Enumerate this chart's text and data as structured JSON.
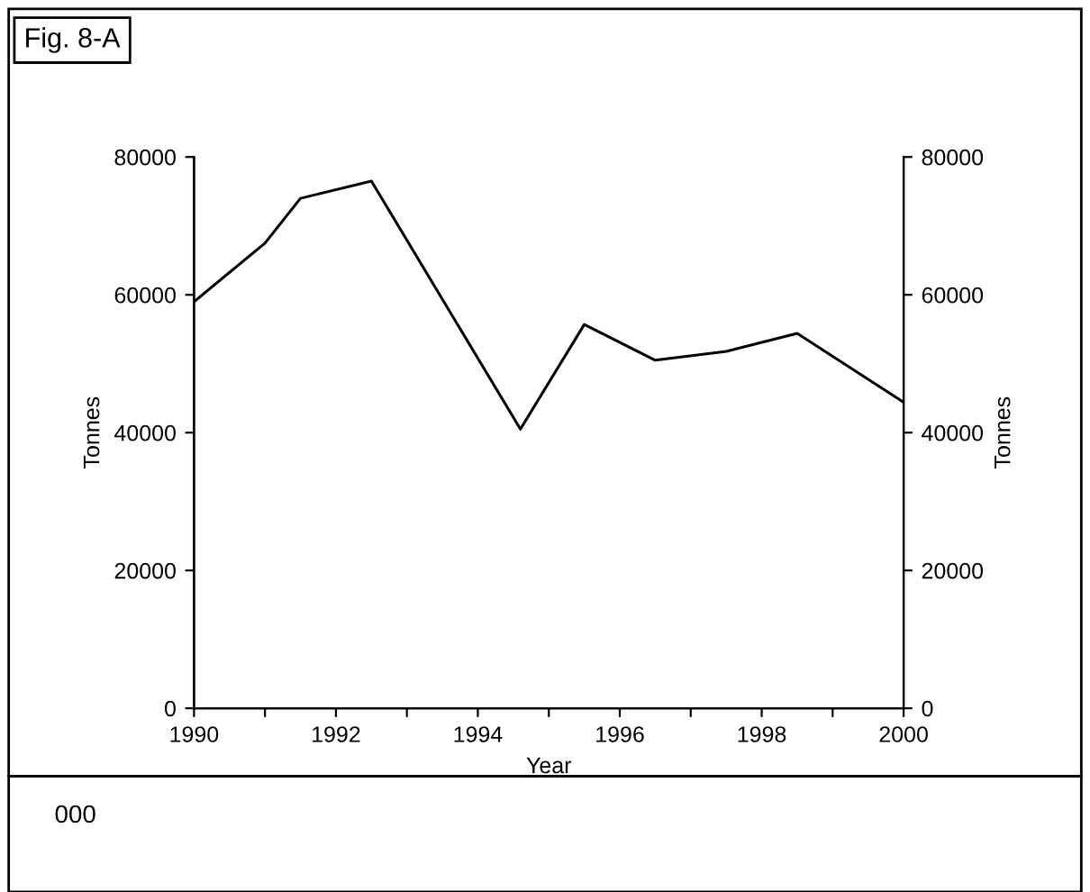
{
  "chart_data": {
    "type": "line",
    "title": "Fig. 8-A",
    "xlabel": "Year",
    "ylabel": "Tonnes",
    "y2label": "Tonnes",
    "annotations": [
      "000"
    ],
    "x": [
      1990,
      1991,
      1991.5,
      1992.5,
      1994.6,
      1995.5,
      1996.5,
      1997.5,
      1998.5,
      2000
    ],
    "series": [
      {
        "color": "#000000",
        "values": [
          59000,
          67500,
          74000,
          76500,
          40500,
          55700,
          50500,
          51800,
          54400,
          44400
        ]
      }
    ],
    "xlim": [
      1990,
      2000
    ],
    "xticks": [
      1990,
      {
        "value": 1991,
        "label": null
      },
      1992,
      {
        "value": 1993,
        "label": null
      },
      1994,
      {
        "value": 1995,
        "label": null
      },
      1996,
      {
        "value": 1997,
        "label": null
      },
      1998,
      {
        "value": 1999,
        "label": null
      },
      2000
    ],
    "ylim": [
      0,
      80000
    ],
    "yticks": [
      0,
      20000,
      40000,
      60000,
      80000
    ],
    "y2lim": [
      0,
      80000
    ],
    "y2ticks": [
      0,
      20000,
      40000,
      60000,
      80000
    ],
    "grid": false,
    "marker": "none",
    "line_style": "solid"
  }
}
